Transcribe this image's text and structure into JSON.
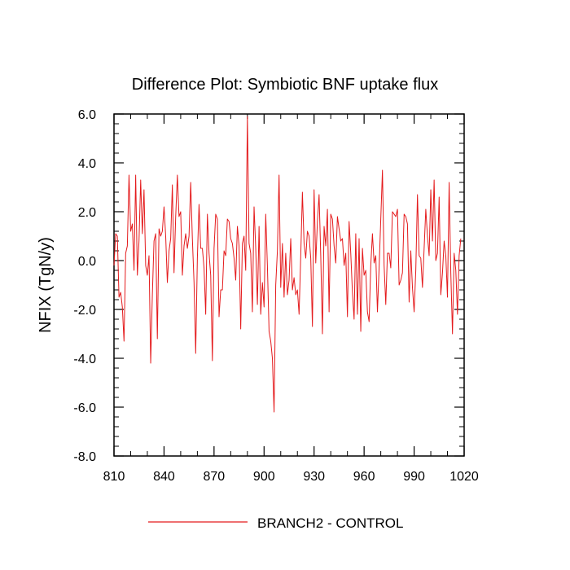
{
  "chart_data": {
    "type": "line",
    "title": "Difference Plot: Symbiotic BNF uptake flux",
    "xlabel": "",
    "ylabel": "NFIX  (TgN/y)",
    "xlim": [
      810,
      1020
    ],
    "ylim": [
      -8.0,
      6.0
    ],
    "x_ticks": [
      810,
      840,
      870,
      900,
      930,
      960,
      990,
      1020
    ],
    "x_tick_labels": [
      "810",
      "840",
      "870",
      "900",
      "930",
      "960",
      "990",
      "1020"
    ],
    "y_ticks": [
      -8,
      -6,
      -4,
      -2,
      0,
      2,
      4,
      6
    ],
    "y_tick_labels": [
      "-8.0",
      "-6.0",
      "-4.0",
      "-2.0",
      "0.0",
      "2.0",
      "4.0",
      "6.0"
    ],
    "grid": false,
    "legend_position": "bottom-center",
    "series": [
      {
        "name": "BRANCH2 - CONTROL",
        "color": "#e41a1c",
        "x_start": 810,
        "x_step": 1,
        "values": [
          -0.2,
          1.1,
          1.0,
          -1.5,
          -1.3,
          -1.9,
          -3.3,
          0.3,
          0.6,
          3.5,
          1.2,
          1.5,
          -0.4,
          3.5,
          -0.6,
          0.8,
          3.3,
          1.1,
          2.9,
          -0.2,
          -0.6,
          0.2,
          -4.2,
          -1.4,
          0.8,
          1.1,
          -3.2,
          1.3,
          1.0,
          1.2,
          2.2,
          1.0,
          -0.9,
          0.4,
          0.9,
          3.1,
          -0.5,
          1.8,
          3.5,
          1.8,
          2.0,
          -0.6,
          0.6,
          1.1,
          0.5,
          1.0,
          3.2,
          0.9,
          -0.9,
          -3.8,
          0.1,
          2.3,
          0.5,
          0.5,
          -0.3,
          -2.2,
          1.9,
          0.3,
          -0.6,
          -4.1,
          0.5,
          1.9,
          1.7,
          -2.3,
          -1.2,
          -1.2,
          0.4,
          0.2,
          1.7,
          1.6,
          0.9,
          0.7,
          0.1,
          -0.8,
          1.4,
          0.6,
          -2.8,
          0.7,
          1.0,
          -0.4,
          5.9,
          0.7,
          0.3,
          -2.1,
          2.2,
          0.5,
          -1.8,
          1.4,
          -2.2,
          -0.9,
          -1.9,
          1.9,
          -0.2,
          -2.9,
          -3.3,
          -4.0,
          -6.2,
          -1.0,
          0.4,
          3.5,
          -1.1,
          0.7,
          -1.5,
          0.3,
          -1.4,
          -0.8,
          0.9,
          -1.2,
          -0.7,
          -1.4,
          -1.2,
          -2.2,
          0.2,
          2.8,
          0.7,
          0.1,
          1.2,
          1.0,
          0.1,
          -2.7,
          2.9,
          -0.1,
          1.6,
          2.7,
          0.2,
          -3.0,
          1.4,
          0.6,
          2.1,
          -2.1,
          1.9,
          1.7,
          0.6,
          -0.1,
          1.8,
          1.3,
          0.8,
          0.9,
          -0.2,
          0.3,
          -2.3,
          1.6,
          0.3,
          -1.3,
          -2.4,
          1.1,
          -2.2,
          0.9,
          -2.9,
          0.5,
          -0.6,
          -0.4,
          -2.1,
          -2.5,
          -0.2,
          1.1,
          -0.1,
          0.2,
          -2.1,
          -0.3,
          1.7,
          3.7,
          -0.2,
          -1.8,
          0.3,
          0.3,
          -0.3,
          2.0,
          1.9,
          1.8,
          2.1,
          -1.0,
          -0.8,
          -0.5,
          1.9,
          1.8,
          1.5,
          -1.7,
          0.4,
          -1.1,
          -2.1,
          -0.4,
          2.7,
          0.2,
          0.1,
          -1.1,
          0.5,
          2.1,
          1.0,
          0.2,
          2.9,
          0.8,
          3.3,
          0.0,
          0.3,
          2.6,
          -1.4,
          -0.5,
          0.8,
          0.2,
          -1.5,
          3.2,
          -0.5,
          -3.0,
          0.3,
          -0.4,
          -2.2,
          0.2,
          0.9
        ]
      }
    ]
  }
}
